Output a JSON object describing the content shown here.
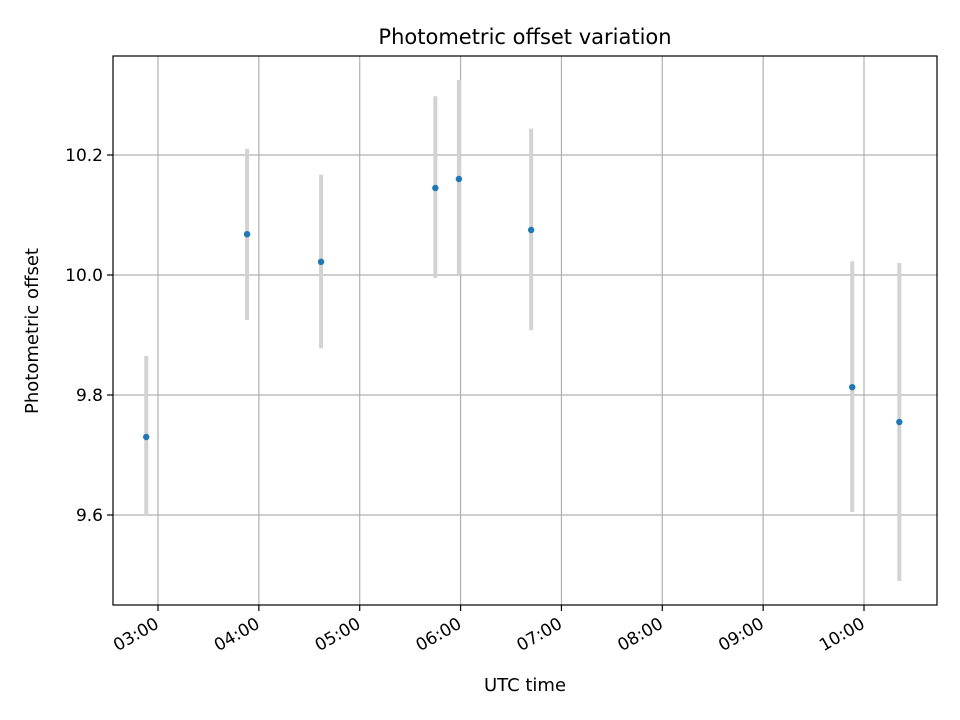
{
  "chart_data": {
    "type": "scatter",
    "title": "Photometric offset variation",
    "xlabel": "UTC time",
    "ylabel": "Photometric offset",
    "x_ticks": [
      "03:00",
      "04:00",
      "05:00",
      "06:00",
      "07:00",
      "08:00",
      "09:00",
      "10:00"
    ],
    "y_ticks": [
      "9.6",
      "9.8",
      "10.0",
      "10.2"
    ],
    "grid": true,
    "points": [
      {
        "x": "02:53",
        "y": 9.73,
        "y_low": 9.6,
        "y_high": 9.865
      },
      {
        "x": "03:53",
        "y": 10.068,
        "y_low": 9.925,
        "y_high": 10.21
      },
      {
        "x": "04:37",
        "y": 10.022,
        "y_low": 9.878,
        "y_high": 10.167
      },
      {
        "x": "05:45",
        "y": 10.145,
        "y_low": 9.995,
        "y_high": 10.298
      },
      {
        "x": "05:59",
        "y": 10.16,
        "y_low": 10.0,
        "y_high": 10.325
      },
      {
        "x": "06:42",
        "y": 10.075,
        "y_low": 9.908,
        "y_high": 10.244
      },
      {
        "x": "09:53",
        "y": 9.813,
        "y_low": 9.605,
        "y_high": 10.023
      },
      {
        "x": "10:21",
        "y": 9.755,
        "y_low": 9.49,
        "y_high": 10.02
      }
    ],
    "colors": {
      "point": "#1f77b4",
      "errorbar": "#d3d3d3",
      "grid": "#b0b0b0"
    }
  }
}
